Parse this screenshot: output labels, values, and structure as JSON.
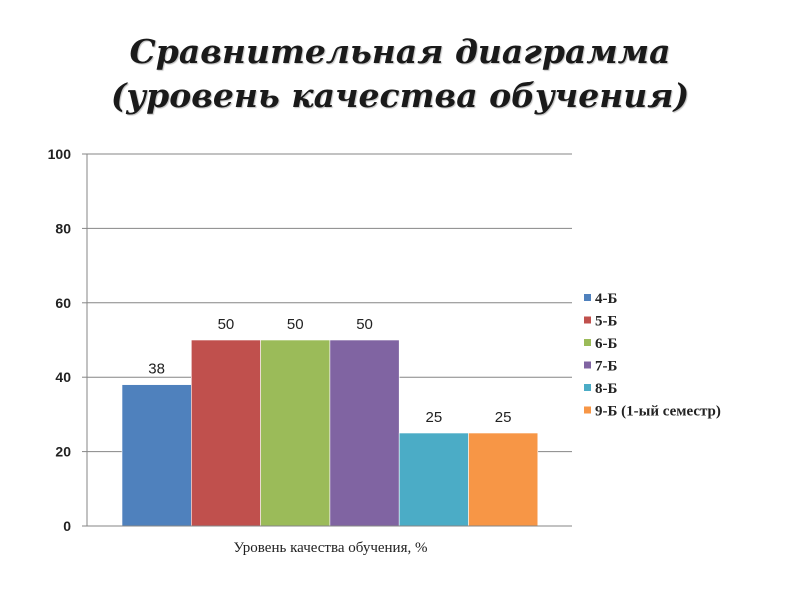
{
  "title_line1": "Сравнительная диаграмма",
  "title_line2": "(уровень качества обучения)",
  "chart_data": {
    "type": "bar",
    "title": "Сравнительная диаграмма (уровень качества обучения)",
    "xlabel": "Уровень качества обучения, %",
    "ylabel": "",
    "ylim": [
      0,
      100
    ],
    "yticks": [
      0,
      20,
      40,
      60,
      80,
      100
    ],
    "grid": true,
    "legend_position": "right",
    "categories": [
      "Уровень качества обучения, %"
    ],
    "series": [
      {
        "name": "4-Б",
        "values": [
          38
        ],
        "color": "#4f81bd"
      },
      {
        "name": "5-Б",
        "values": [
          50
        ],
        "color": "#c0504d"
      },
      {
        "name": "6-Б",
        "values": [
          50
        ],
        "color": "#9bbb59"
      },
      {
        "name": "7-Б",
        "values": [
          50
        ],
        "color": "#8064a2"
      },
      {
        "name": "8-Б",
        "values": [
          25
        ],
        "color": "#4bacc6"
      },
      {
        "name": "9-Б (1-ый семестр)",
        "values": [
          25
        ],
        "color": "#f79646"
      }
    ]
  }
}
